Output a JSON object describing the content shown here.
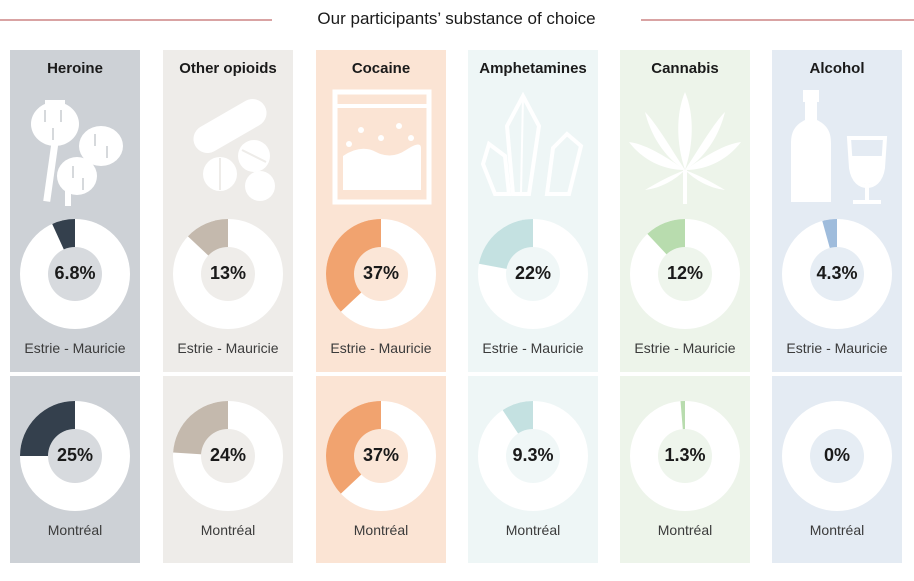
{
  "title": "Our participants’ substance of choice",
  "chart_data": {
    "type": "pie",
    "title": "Our participants’ substance of choice",
    "regions": [
      "Estrie - Mauricie",
      "Montréal"
    ],
    "categories": [
      "Heroine",
      "Other opioids",
      "Cocaine",
      "Amphetamines",
      "Cannabis",
      "Alcohol"
    ],
    "series": [
      {
        "name": "Estrie - Mauricie",
        "values": [
          6.8,
          13,
          37,
          22,
          12,
          4.3
        ],
        "labels": [
          "6.8%",
          "13%",
          "37%",
          "22%",
          "12%",
          "4.3%"
        ]
      },
      {
        "name": "Montréal",
        "values": [
          25,
          24,
          37,
          9.3,
          1.3,
          0
        ],
        "labels": [
          "25%",
          "24%",
          "37%",
          "9.3%",
          "1.3%",
          "0%"
        ]
      }
    ]
  },
  "columns": [
    {
      "name": "Heroine",
      "icon": "poppy-icon",
      "bg": "#cdd1d6",
      "accent": "#34404d",
      "track": "#ffffff",
      "hole": "#d7dade"
    },
    {
      "name": "Other opioids",
      "icon": "pills-icon",
      "bg": "#eeece9",
      "accent": "#c4b9ad",
      "track": "#ffffff",
      "hole": "#efedea"
    },
    {
      "name": "Cocaine",
      "icon": "bag-icon",
      "bg": "#fbe4d4",
      "accent": "#f1a36f",
      "track": "#ffffff",
      "hole": "#fbe6d7"
    },
    {
      "name": "Amphetamines",
      "icon": "crystal-icon",
      "bg": "#eef6f6",
      "accent": "#c4e1e1",
      "track": "#ffffff",
      "hole": "#f0f7f7"
    },
    {
      "name": "Cannabis",
      "icon": "cannabis-leaf-icon",
      "bg": "#edf4ea",
      "accent": "#b8dcae",
      "track": "#ffffff",
      "hole": "#eef5ec"
    },
    {
      "name": "Alcohol",
      "icon": "bottle-glass-icon",
      "bg": "#e4ebf3",
      "accent": "#9fbcdc",
      "track": "#ffffff",
      "hole": "#e6edf4"
    }
  ]
}
